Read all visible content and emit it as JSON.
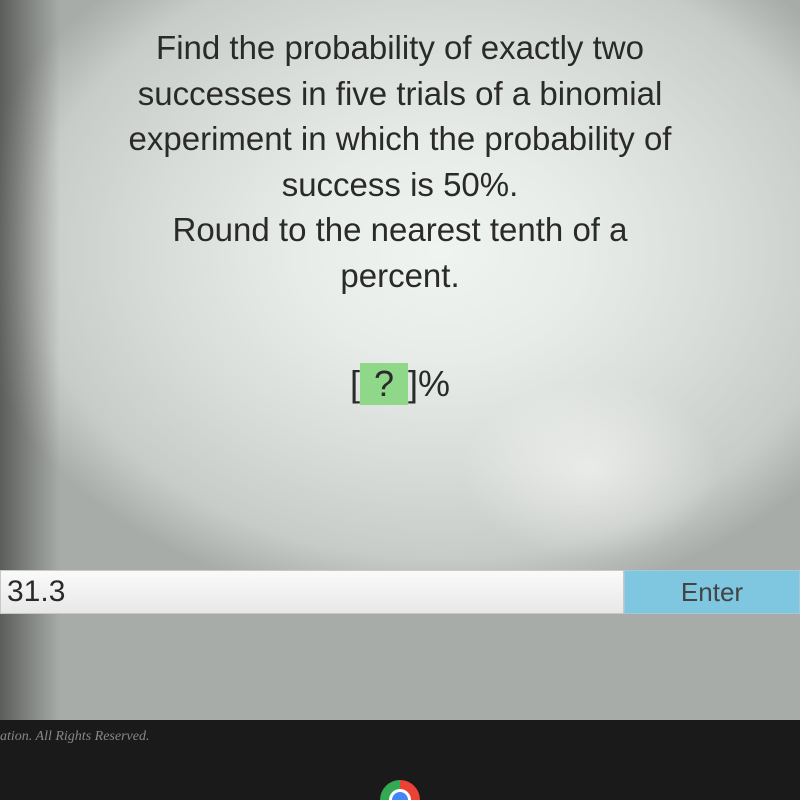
{
  "question": {
    "line1": "Find the probability of exactly two",
    "line2": "successes in five trials of a binomial",
    "line3": "experiment in which the probability of",
    "line4": "success is 50%.",
    "line5": "Round to the nearest tenth of a",
    "line6": "percent."
  },
  "placeholder": {
    "left_bracket": "[",
    "mark": "?",
    "right_bracket": "]",
    "unit": "%"
  },
  "input": {
    "value": "31.3"
  },
  "buttons": {
    "enter": "Enter"
  },
  "footer": {
    "copyright": "ation. All Rights Reserved."
  },
  "colors": {
    "highlight_bg": "#8fd88a",
    "enter_bg": "#7fc6e0",
    "text": "#2a2a2a",
    "page_bg_light": "#e8ece8",
    "bottom_bg": "#1a1a1a"
  }
}
